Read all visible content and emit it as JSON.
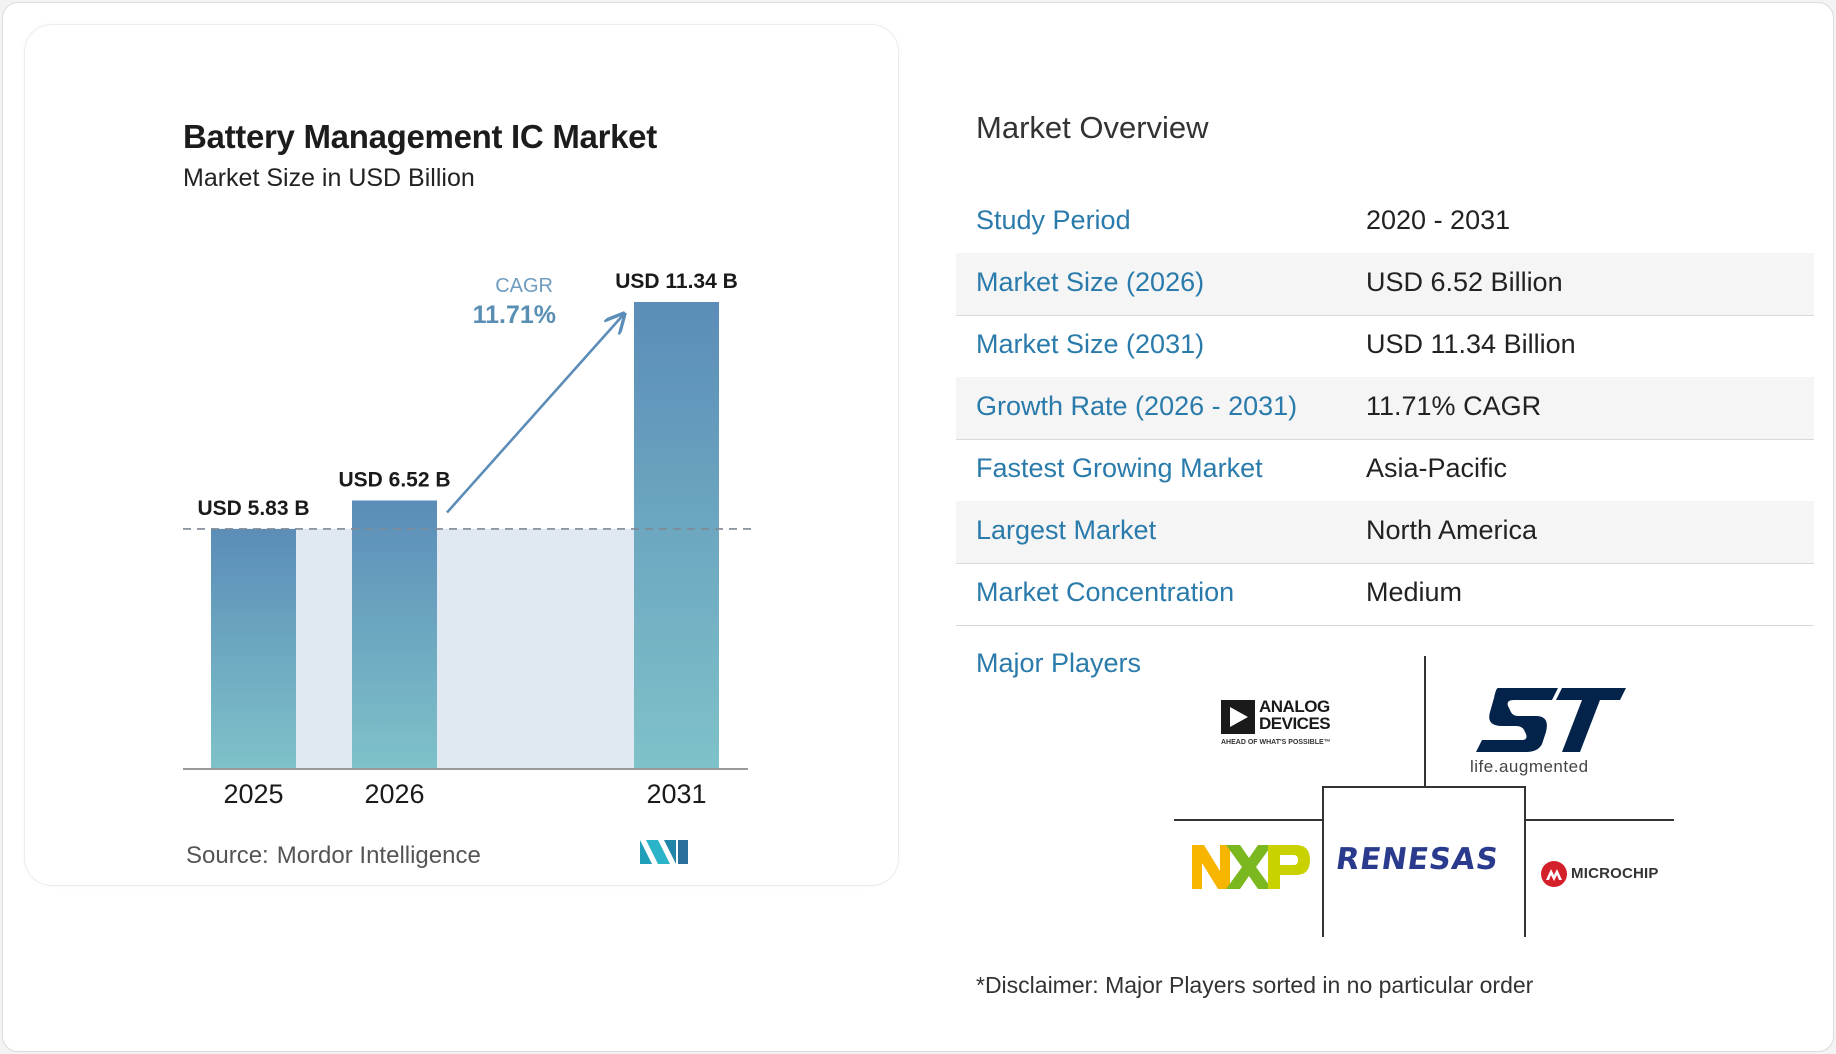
{
  "chart_data": {
    "type": "bar",
    "title": "Battery Management IC Market",
    "subtitle": "Market Size in USD Billion",
    "categories": [
      "2025",
      "2026",
      "2031"
    ],
    "values": [
      5.83,
      6.52,
      11.34
    ],
    "data_labels": [
      "USD 5.83 B",
      "USD 6.52 B",
      "USD 11.34 B"
    ],
    "cagr_label": "CAGR",
    "cagr_value": "11.71%",
    "xlabel": "",
    "ylabel": "",
    "ylim": [
      0,
      11.34
    ],
    "grid": false,
    "legend": "none"
  },
  "source": {
    "label": "Source:",
    "name": "Mordor Intelligence"
  },
  "overview": {
    "title": "Market Overview",
    "rows": [
      {
        "key": "Study Period",
        "value": "2020 - 2031"
      },
      {
        "key": "Market Size (2026)",
        "value": "USD 6.52 Billion"
      },
      {
        "key": "Market Size (2031)",
        "value": "USD 11.34 Billion"
      },
      {
        "key": "Growth Rate (2026 - 2031)",
        "value": "11.71% CAGR"
      },
      {
        "key": "Fastest Growing Market",
        "value": "Asia-Pacific"
      },
      {
        "key": "Largest Market",
        "value": "North America"
      },
      {
        "key": "Market Concentration",
        "value": "Medium"
      }
    ]
  },
  "players": {
    "label": "Major Players",
    "logos": [
      {
        "name": "Analog Devices",
        "line1": "ANALOG",
        "line2": "DEVICES",
        "tagline": "AHEAD OF WHAT'S POSSIBLE™"
      },
      {
        "name": "STMicroelectronics",
        "mark": "ST",
        "tagline": "life.augmented"
      },
      {
        "name": "NXP",
        "mark": "NXP"
      },
      {
        "name": "Renesas",
        "mark": "RENESAS"
      },
      {
        "name": "Microchip",
        "mark": "MICROCHIP"
      }
    ]
  },
  "disclaimer": "*Disclaimer: Major Players sorted in no particular order",
  "colors": {
    "bar_top": "#5b8db8",
    "bar_bottom": "#7fc2c9",
    "area": "#e0e9f1",
    "accent_blue": "#2a7bab",
    "cagr_text": "#5a8fb4"
  }
}
